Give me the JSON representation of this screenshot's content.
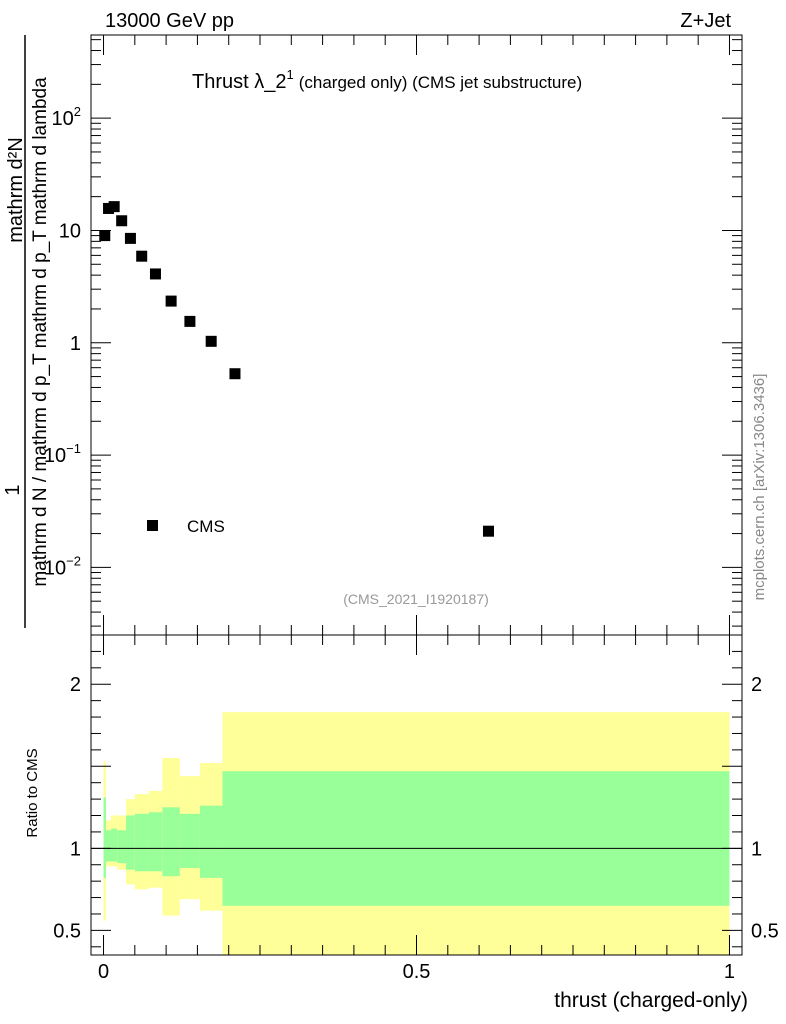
{
  "header": {
    "left": "13000 GeV pp",
    "right": "Z+Jet"
  },
  "side_label": "mcplots.cern.ch [arXiv:1306.3436]",
  "chart_data": [
    {
      "type": "scatter",
      "panel": "main",
      "title": "Thrust λ_2",
      "title_sup": "1",
      "title_suffix": "(charged only) (CMS jet substructure)",
      "analysis_label": "(CMS_2021_I1920187)",
      "ylabel_top": "1",
      "ylabel_bottom": "mathrm d N / mathrm d p_T mathrm d p_T mathrm d lambda",
      "ylabel_numerator": "mathrm d²N",
      "yscale": "log",
      "ylim": [
        0.0025,
        550
      ],
      "xlim": [
        -0.02,
        1.02
      ],
      "y_ticks": [
        {
          "v": 0.01,
          "base": "10",
          "exp": "−2"
        },
        {
          "v": 0.1,
          "base": "10",
          "exp": "−1"
        },
        {
          "v": 1,
          "base": "1",
          "exp": ""
        },
        {
          "v": 10,
          "base": "10",
          "exp": ""
        },
        {
          "v": 100,
          "base": "10",
          "exp": "2"
        }
      ],
      "legend": {
        "entries": [
          {
            "label": "CMS",
            "marker": "square",
            "color": "#000000"
          }
        ],
        "position": "bottom-left"
      },
      "series": [
        {
          "name": "CMS",
          "x": [
            0.002,
            0.008,
            0.017,
            0.029,
            0.043,
            0.061,
            0.083,
            0.108,
            0.138,
            0.172,
            0.21,
            0.615
          ],
          "y": [
            9.0,
            15.7,
            16.3,
            12.2,
            8.5,
            5.9,
            4.1,
            2.35,
            1.55,
            1.03,
            0.53,
            0.021
          ]
        }
      ]
    },
    {
      "type": "area",
      "panel": "ratio",
      "ylabel": "Ratio to CMS",
      "xlabel": "thrust (charged-only)",
      "xlim": [
        -0.02,
        1.02
      ],
      "ylim": [
        0.35,
        2.3
      ],
      "x_ticks": [
        {
          "v": 0,
          "label": "0"
        },
        {
          "v": 0.5,
          "label": "0.5"
        },
        {
          "v": 1,
          "label": "1"
        }
      ],
      "y_ticks": [
        {
          "v": 0.5,
          "label": "0.5"
        },
        {
          "v": 1,
          "label": "1"
        },
        {
          "v": 2,
          "label": "2"
        }
      ],
      "reference_line": 1,
      "band_colors": {
        "outer": "#ffff99",
        "inner": "#99ff99"
      },
      "bins": [
        {
          "x0": 0.0,
          "x1": 0.004,
          "outer": [
            0.56,
            1.53
          ],
          "inner": [
            0.82,
            1.31
          ]
        },
        {
          "x0": 0.004,
          "x1": 0.012,
          "outer": [
            0.89,
            1.17
          ],
          "inner": [
            0.92,
            1.11
          ]
        },
        {
          "x0": 0.012,
          "x1": 0.022,
          "outer": [
            0.89,
            1.2
          ],
          "inner": [
            0.92,
            1.12
          ]
        },
        {
          "x0": 0.022,
          "x1": 0.036,
          "outer": [
            0.87,
            1.2
          ],
          "inner": [
            0.91,
            1.11
          ]
        },
        {
          "x0": 0.036,
          "x1": 0.05,
          "outer": [
            0.78,
            1.3
          ],
          "inner": [
            0.87,
            1.2
          ]
        },
        {
          "x0": 0.05,
          "x1": 0.072,
          "outer": [
            0.75,
            1.33
          ],
          "inner": [
            0.86,
            1.21
          ]
        },
        {
          "x0": 0.072,
          "x1": 0.094,
          "outer": [
            0.76,
            1.35
          ],
          "inner": [
            0.86,
            1.22
          ]
        },
        {
          "x0": 0.094,
          "x1": 0.122,
          "outer": [
            0.59,
            1.55
          ],
          "inner": [
            0.83,
            1.25
          ]
        },
        {
          "x0": 0.122,
          "x1": 0.154,
          "outer": [
            0.69,
            1.44
          ],
          "inner": [
            0.88,
            1.21
          ]
        },
        {
          "x0": 0.154,
          "x1": 0.19,
          "outer": [
            0.62,
            1.52
          ],
          "inner": [
            0.82,
            1.26
          ]
        },
        {
          "x0": 0.19,
          "x1": 0.226,
          "outer": [
            0.35,
            1.83
          ],
          "inner": [
            0.65,
            1.47
          ]
        },
        {
          "x0": 0.226,
          "x1": 1.0,
          "outer": [
            0.35,
            1.83
          ],
          "inner": [
            0.65,
            1.47
          ]
        }
      ]
    }
  ]
}
